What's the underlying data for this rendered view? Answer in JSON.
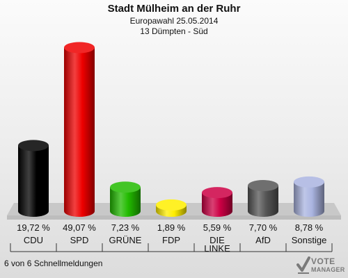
{
  "header": {
    "title": "Stadt Mülheim an der Ruhr",
    "subtitle": "Europawahl 25.05.2014",
    "district": "13 Dümpten - Süd"
  },
  "footer": {
    "note": "6 von 6 Schnellmeldungen"
  },
  "brand": {
    "line1": "VOTE",
    "line2": "MANAGER"
  },
  "chart_data": {
    "type": "bar",
    "title": "Stadt Mülheim an der Ruhr",
    "subtitle": "Europawahl 25.05.2014",
    "categories": [
      "CDU",
      "SPD",
      "GRÜNE",
      "FDP",
      "DIE\nLINKE",
      "AfD",
      "Sonstige"
    ],
    "values": [
      19.72,
      49.07,
      7.23,
      1.89,
      5.59,
      7.7,
      8.78
    ],
    "value_labels": [
      "19,72 %",
      "49,07 %",
      "7,23 %",
      "1,89 %",
      "5,59 %",
      "7,70 %",
      "8,78 %"
    ],
    "colors": [
      "#000000",
      "#ee0000",
      "#22bb00",
      "#ffee00",
      "#cc0044",
      "#555555",
      "#aab4e0"
    ],
    "ylim": [
      0,
      50
    ],
    "grid": false
  }
}
